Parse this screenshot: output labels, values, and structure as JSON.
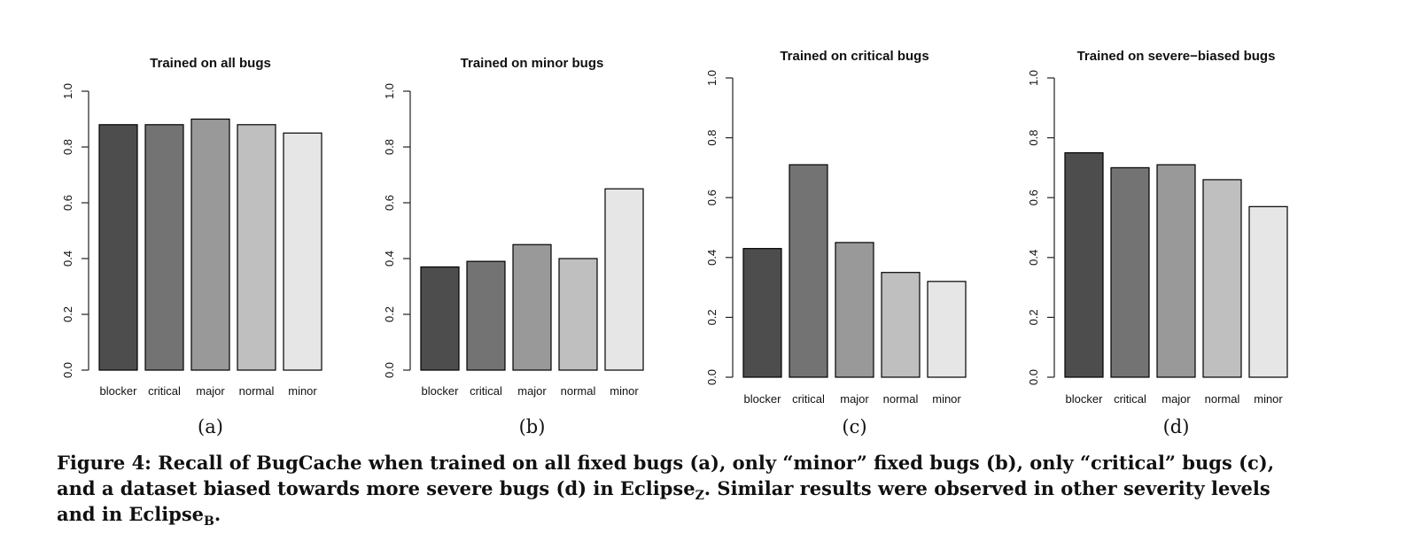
{
  "chart_data": [
    {
      "type": "bar",
      "title": "Trained on all bugs",
      "categories": [
        "blocker",
        "critical",
        "major",
        "normal",
        "minor"
      ],
      "values": [
        0.88,
        0.88,
        0.9,
        0.88,
        0.85
      ],
      "ylim": [
        0,
        1
      ],
      "yticks": [
        "0.0",
        "0.2",
        "0.4",
        "0.6",
        "0.8",
        "1.0"
      ],
      "panel_label": "(a)"
    },
    {
      "type": "bar",
      "title": "Trained on minor bugs",
      "categories": [
        "blocker",
        "critical",
        "major",
        "normal",
        "minor"
      ],
      "values": [
        0.37,
        0.39,
        0.45,
        0.4,
        0.65
      ],
      "ylim": [
        0,
        1
      ],
      "yticks": [
        "0.0",
        "0.2",
        "0.4",
        "0.6",
        "0.8",
        "1.0"
      ],
      "panel_label": "(b)"
    },
    {
      "type": "bar",
      "title": "Trained on critical bugs",
      "categories": [
        "blocker",
        "critical",
        "major",
        "normal",
        "minor"
      ],
      "values": [
        0.43,
        0.71,
        0.45,
        0.35,
        0.32
      ],
      "ylim": [
        0,
        1
      ],
      "yticks": [
        "0.0",
        "0.2",
        "0.4",
        "0.6",
        "0.8",
        "1.0"
      ],
      "panel_label": "(c)"
    },
    {
      "type": "bar",
      "title": "Trained on severe−biased bugs",
      "categories": [
        "blocker",
        "critical",
        "major",
        "normal",
        "minor"
      ],
      "values": [
        0.75,
        0.7,
        0.71,
        0.66,
        0.57
      ],
      "ylim": [
        0,
        1
      ],
      "yticks": [
        "0.0",
        "0.2",
        "0.4",
        "0.6",
        "0.8",
        "1.0"
      ],
      "panel_label": "(d)"
    }
  ],
  "bar_colors": [
    "#4d4d4d",
    "#737373",
    "#999999",
    "#bfbfbf",
    "#e6e6e6"
  ],
  "caption": {
    "label": "Figure 4:",
    "text_1": "Recall of BugCache when trained on all fixed bugs (a), only “minor” fixed bugs (b), only “critical” bugs (c), and a dataset biased towards more severe bugs (d) in Eclipse",
    "sub_1": "Z",
    "text_2": ". Similar results were observed in other severity levels and in Eclipse",
    "sub_2": "B",
    "text_3": "."
  }
}
